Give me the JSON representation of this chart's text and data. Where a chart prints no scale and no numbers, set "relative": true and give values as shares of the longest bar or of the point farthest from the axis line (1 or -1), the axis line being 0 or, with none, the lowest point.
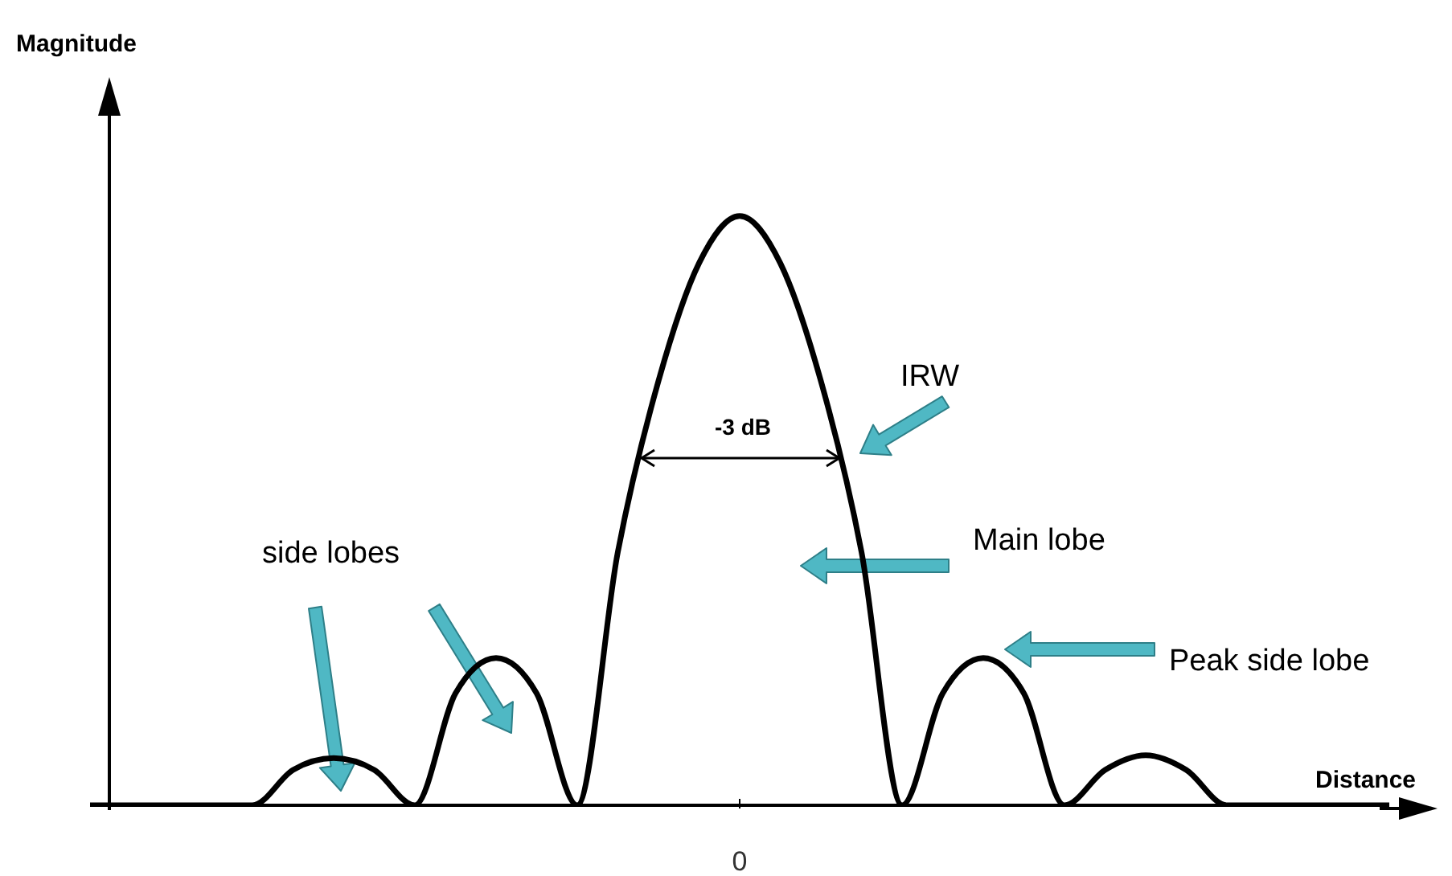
{
  "chart_data": {
    "type": "line",
    "relative": true,
    "xlabel": "Distance",
    "categories": [
      null,
      null,
      null,
      null,
      null,
      null,
      null,
      null,
      null,
      null,
      null,
      null,
      null,
      null,
      null,
      null,
      null,
      null,
      null,
      null,
      null,
      null,
      null,
      null,
      null,
      null,
      null,
      null,
      null,
      null,
      null,
      null,
      null
    ],
    "series": [
      {
        "color": "#000000",
        "values": [
          0,
          0,
          0,
          0,
          0,
          0.06,
          0.08,
          0.06,
          0,
          0.19,
          0.25,
          0.19,
          0,
          0.43,
          0.72,
          0.92,
          1,
          0.92,
          0.72,
          0.43,
          0,
          0.19,
          0.25,
          0.19,
          0,
          0.06,
          0.085,
          0.06,
          0,
          0,
          0,
          0,
          0
        ]
      }
    ],
    "annotations": [
      "-3 dB",
      "IRW",
      "Main lobe",
      "Peak side lobe",
      "side lobes",
      "0",
      "Magnitude"
    ],
    "legend": false,
    "grid": false,
    "marker": "none",
    "line_style": "solid"
  }
}
